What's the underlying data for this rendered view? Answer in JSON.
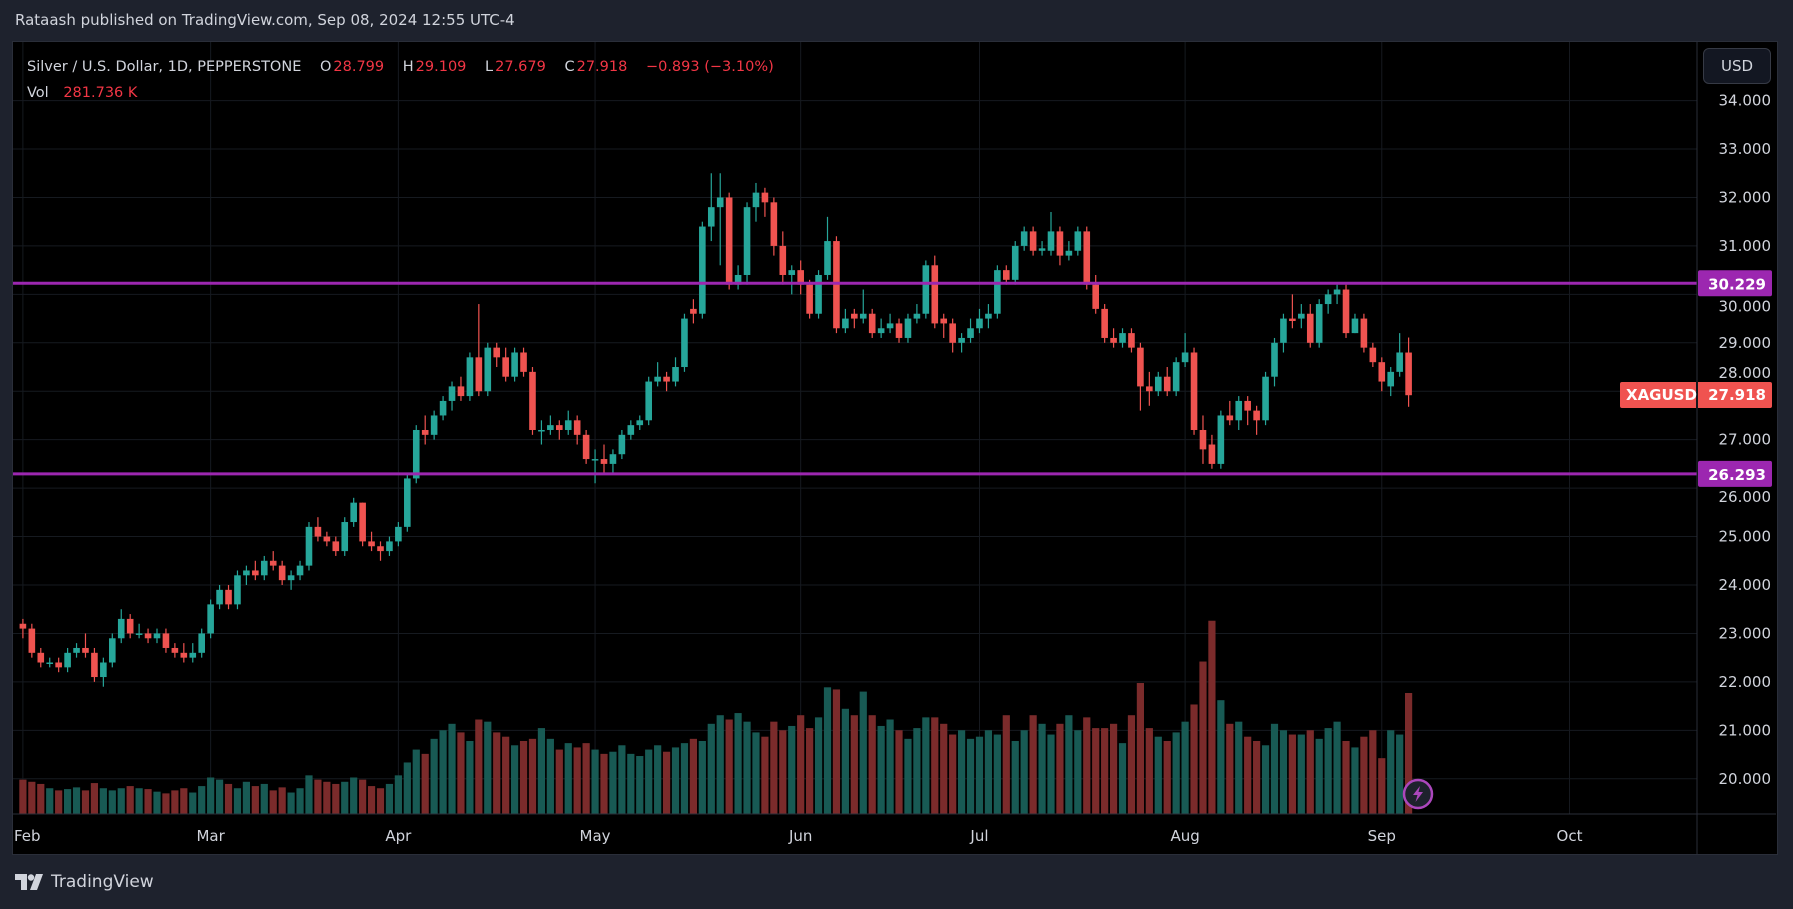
{
  "publisher_line": "Rataash published on TradingView.com, Sep 08, 2024 12:55 UTC-4",
  "brand": "TradingView",
  "legend": {
    "symbol": "Silver / U.S. Dollar, 1D, PEPPERSTONE",
    "o_label": "O",
    "o": "28.799",
    "h_label": "H",
    "h": "29.109",
    "l_label": "L",
    "l": "27.679",
    "c_label": "C",
    "c": "27.918",
    "change": "−0.893 (−3.10%)",
    "vol_label": "Vol",
    "vol": "281.736 K"
  },
  "currency_button": "USD",
  "symbol_badge": "XAGUSD",
  "last_price_badge": "27.918",
  "colors": {
    "up": "#26a69a",
    "down": "#ef5350",
    "vol_up": "#185a54",
    "vol_down": "#7b2b2b",
    "level_line": "#9c27b0",
    "background": "#000000"
  },
  "icons": {
    "replay": "lightning-icon",
    "logo": "tradingview-logo"
  },
  "chart_data": {
    "type": "candlestick",
    "symbol": "XAGUSD",
    "interval": "1D",
    "ylim": [
      19.5,
      34.3
    ],
    "y_ticks": [
      "34.000",
      "33.000",
      "32.000",
      "31.000",
      "30.000",
      "29.000",
      "28.000",
      "27.000",
      "26.000",
      "25.000",
      "24.000",
      "23.000",
      "22.000",
      "21.000",
      "20.000"
    ],
    "x_tick_labels": [
      {
        "label": "Feb",
        "bar": 0
      },
      {
        "label": "Mar",
        "bar": 21
      },
      {
        "label": "Apr",
        "bar": 42
      },
      {
        "label": "May",
        "bar": 64
      },
      {
        "label": "Jun",
        "bar": 87
      },
      {
        "label": "Jul",
        "bar": 107
      },
      {
        "label": "Aug",
        "bar": 130
      },
      {
        "label": "Sep",
        "bar": 152
      },
      {
        "label": "Oct",
        "bar": 173
      }
    ],
    "horizontal_levels": [
      {
        "price": 30.229,
        "label": "30.229"
      },
      {
        "price": 26.293,
        "label": "26.293"
      }
    ],
    "last_price": 27.918,
    "ohlc": [
      [
        23.2,
        23.3,
        22.9,
        23.1
      ],
      [
        23.1,
        23.2,
        22.5,
        22.6
      ],
      [
        22.6,
        22.7,
        22.3,
        22.4
      ],
      [
        22.4,
        22.5,
        22.3,
        22.4
      ],
      [
        22.4,
        22.5,
        22.2,
        22.3
      ],
      [
        22.3,
        22.7,
        22.2,
        22.6
      ],
      [
        22.6,
        22.8,
        22.5,
        22.7
      ],
      [
        22.7,
        23.0,
        22.5,
        22.6
      ],
      [
        22.6,
        22.7,
        22.0,
        22.1
      ],
      [
        22.1,
        22.5,
        21.9,
        22.4
      ],
      [
        22.4,
        23.0,
        22.3,
        22.9
      ],
      [
        22.9,
        23.5,
        22.8,
        23.3
      ],
      [
        23.3,
        23.4,
        22.9,
        23.0
      ],
      [
        23.0,
        23.2,
        22.9,
        23.0
      ],
      [
        23.0,
        23.1,
        22.8,
        22.9
      ],
      [
        22.9,
        23.1,
        22.8,
        23.0
      ],
      [
        23.0,
        23.1,
        22.6,
        22.7
      ],
      [
        22.7,
        22.8,
        22.5,
        22.6
      ],
      [
        22.6,
        22.8,
        22.4,
        22.5
      ],
      [
        22.5,
        22.8,
        22.4,
        22.6
      ],
      [
        22.6,
        23.1,
        22.5,
        23.0
      ],
      [
        23.0,
        23.7,
        22.9,
        23.6
      ],
      [
        23.6,
        24.0,
        23.5,
        23.9
      ],
      [
        23.9,
        24.0,
        23.5,
        23.6
      ],
      [
        23.6,
        24.3,
        23.5,
        24.2
      ],
      [
        24.2,
        24.4,
        24.0,
        24.3
      ],
      [
        24.3,
        24.5,
        24.1,
        24.2
      ],
      [
        24.2,
        24.6,
        24.1,
        24.5
      ],
      [
        24.5,
        24.7,
        24.3,
        24.4
      ],
      [
        24.4,
        24.5,
        24.0,
        24.1
      ],
      [
        24.1,
        24.3,
        23.9,
        24.2
      ],
      [
        24.2,
        24.5,
        24.1,
        24.4
      ],
      [
        24.4,
        25.3,
        24.3,
        25.2
      ],
      [
        25.2,
        25.4,
        24.9,
        25.0
      ],
      [
        25.0,
        25.1,
        24.8,
        24.9
      ],
      [
        24.9,
        25.0,
        24.6,
        24.7
      ],
      [
        24.7,
        25.4,
        24.6,
        25.3
      ],
      [
        25.3,
        25.8,
        25.2,
        25.7
      ],
      [
        25.7,
        25.7,
        24.8,
        24.9
      ],
      [
        24.9,
        25.1,
        24.7,
        24.8
      ],
      [
        24.8,
        24.9,
        24.5,
        24.7
      ],
      [
        24.7,
        25.0,
        24.6,
        24.9
      ],
      [
        24.9,
        25.3,
        24.8,
        25.2
      ],
      [
        25.2,
        26.3,
        25.1,
        26.2
      ],
      [
        26.2,
        27.3,
        26.1,
        27.2
      ],
      [
        27.2,
        27.5,
        26.9,
        27.1
      ],
      [
        27.1,
        27.6,
        27.0,
        27.5
      ],
      [
        27.5,
        27.9,
        27.4,
        27.8
      ],
      [
        27.8,
        28.2,
        27.6,
        28.1
      ],
      [
        28.1,
        28.3,
        27.8,
        27.9
      ],
      [
        27.9,
        28.8,
        27.8,
        28.7
      ],
      [
        28.7,
        29.8,
        27.9,
        28.0
      ],
      [
        28.0,
        29.0,
        27.9,
        28.9
      ],
      [
        28.9,
        29.0,
        28.5,
        28.7
      ],
      [
        28.7,
        28.9,
        28.2,
        28.3
      ],
      [
        28.3,
        28.9,
        28.2,
        28.8
      ],
      [
        28.8,
        28.9,
        28.3,
        28.4
      ],
      [
        28.4,
        28.5,
        27.1,
        27.2
      ],
      [
        27.2,
        27.4,
        26.9,
        27.2
      ],
      [
        27.2,
        27.5,
        27.1,
        27.3
      ],
      [
        27.3,
        27.4,
        27.0,
        27.2
      ],
      [
        27.2,
        27.6,
        27.1,
        27.4
      ],
      [
        27.4,
        27.5,
        26.9,
        27.1
      ],
      [
        27.1,
        27.2,
        26.5,
        26.6
      ],
      [
        26.6,
        26.8,
        26.1,
        26.6
      ],
      [
        26.6,
        26.9,
        26.3,
        26.5
      ],
      [
        26.5,
        26.8,
        26.3,
        26.7
      ],
      [
        26.7,
        27.2,
        26.6,
        27.1
      ],
      [
        27.1,
        27.4,
        27.0,
        27.3
      ],
      [
        27.3,
        27.5,
        27.2,
        27.4
      ],
      [
        27.4,
        28.3,
        27.3,
        28.2
      ],
      [
        28.2,
        28.6,
        28.1,
        28.3
      ],
      [
        28.3,
        28.4,
        28.0,
        28.2
      ],
      [
        28.2,
        28.7,
        28.1,
        28.5
      ],
      [
        28.5,
        29.6,
        28.4,
        29.5
      ],
      [
        29.7,
        29.9,
        29.4,
        29.6
      ],
      [
        29.6,
        31.5,
        29.5,
        31.4
      ],
      [
        31.4,
        32.5,
        31.1,
        31.8
      ],
      [
        31.8,
        32.5,
        30.6,
        32.0
      ],
      [
        32.0,
        32.1,
        30.1,
        30.2
      ],
      [
        30.2,
        30.6,
        30.1,
        30.4
      ],
      [
        30.4,
        31.9,
        30.2,
        31.8
      ],
      [
        31.8,
        32.3,
        31.5,
        32.1
      ],
      [
        32.1,
        32.2,
        31.6,
        31.9
      ],
      [
        31.9,
        32.0,
        30.8,
        31.0
      ],
      [
        31.0,
        31.3,
        30.2,
        30.4
      ],
      [
        30.4,
        30.6,
        30.0,
        30.5
      ],
      [
        30.5,
        30.7,
        30.0,
        30.2
      ],
      [
        30.2,
        30.3,
        29.5,
        29.6
      ],
      [
        29.6,
        30.5,
        29.5,
        30.4
      ],
      [
        30.4,
        31.6,
        30.3,
        31.1
      ],
      [
        31.1,
        31.2,
        29.2,
        29.3
      ],
      [
        29.3,
        29.7,
        29.2,
        29.5
      ],
      [
        29.6,
        29.7,
        29.3,
        29.5
      ],
      [
        29.5,
        30.1,
        29.4,
        29.6
      ],
      [
        29.6,
        29.7,
        29.1,
        29.2
      ],
      [
        29.2,
        29.5,
        29.1,
        29.3
      ],
      [
        29.3,
        29.6,
        29.2,
        29.4
      ],
      [
        29.4,
        29.5,
        29.0,
        29.1
      ],
      [
        29.1,
        29.6,
        29.0,
        29.5
      ],
      [
        29.5,
        29.8,
        29.4,
        29.6
      ],
      [
        29.6,
        30.7,
        29.5,
        30.6
      ],
      [
        30.6,
        30.8,
        29.3,
        29.4
      ],
      [
        29.5,
        29.6,
        29.1,
        29.4
      ],
      [
        29.4,
        29.5,
        28.8,
        29.0
      ],
      [
        29.0,
        29.2,
        28.8,
        29.1
      ],
      [
        29.1,
        29.5,
        29.0,
        29.3
      ],
      [
        29.3,
        29.7,
        29.2,
        29.5
      ],
      [
        29.5,
        29.8,
        29.3,
        29.6
      ],
      [
        29.6,
        30.6,
        29.5,
        30.5
      ],
      [
        30.5,
        30.6,
        30.2,
        30.3
      ],
      [
        30.3,
        31.1,
        30.2,
        31.0
      ],
      [
        31.0,
        31.4,
        30.9,
        31.3
      ],
      [
        31.3,
        31.4,
        30.8,
        30.9
      ],
      [
        30.9,
        31.1,
        30.8,
        30.95
      ],
      [
        30.9,
        31.7,
        30.8,
        31.3
      ],
      [
        31.3,
        31.4,
        30.6,
        30.8
      ],
      [
        30.8,
        31.1,
        30.7,
        30.9
      ],
      [
        30.9,
        31.4,
        30.8,
        31.3
      ],
      [
        31.3,
        31.4,
        30.1,
        30.2
      ],
      [
        30.2,
        30.4,
        29.6,
        29.7
      ],
      [
        29.7,
        29.8,
        29.0,
        29.1
      ],
      [
        29.1,
        29.3,
        28.9,
        29.0
      ],
      [
        29.0,
        29.3,
        28.9,
        29.2
      ],
      [
        29.2,
        29.3,
        28.8,
        28.9
      ],
      [
        28.9,
        29.0,
        27.6,
        28.1
      ],
      [
        28.1,
        28.4,
        27.7,
        28.0
      ],
      [
        28.0,
        28.4,
        27.9,
        28.3
      ],
      [
        28.3,
        28.5,
        27.9,
        28.0
      ],
      [
        28.0,
        28.7,
        27.9,
        28.6
      ],
      [
        28.6,
        29.2,
        28.5,
        28.8
      ],
      [
        28.8,
        28.9,
        27.1,
        27.2
      ],
      [
        27.2,
        27.5,
        26.5,
        26.8
      ],
      [
        26.9,
        27.1,
        26.4,
        26.5
      ],
      [
        26.5,
        27.6,
        26.4,
        27.5
      ],
      [
        27.5,
        27.8,
        27.3,
        27.4
      ],
      [
        27.4,
        27.9,
        27.2,
        27.8
      ],
      [
        27.8,
        27.9,
        27.3,
        27.6
      ],
      [
        27.6,
        27.7,
        27.1,
        27.4
      ],
      [
        27.4,
        28.4,
        27.3,
        28.3
      ],
      [
        28.3,
        29.1,
        28.1,
        29.0
      ],
      [
        29.0,
        29.6,
        28.8,
        29.5
      ],
      [
        29.5,
        30.0,
        29.3,
        29.45
      ],
      [
        29.5,
        29.8,
        29.3,
        29.6
      ],
      [
        29.6,
        29.8,
        28.9,
        29.0
      ],
      [
        29.0,
        29.9,
        28.9,
        29.8
      ],
      [
        29.8,
        30.1,
        29.6,
        30.0
      ],
      [
        30.0,
        30.2,
        29.8,
        30.1
      ],
      [
        30.1,
        30.2,
        29.1,
        29.2
      ],
      [
        29.2,
        29.6,
        29.2,
        29.5
      ],
      [
        29.5,
        29.6,
        28.8,
        28.9
      ],
      [
        28.9,
        29.0,
        28.5,
        28.6
      ],
      [
        28.6,
        28.7,
        28.0,
        28.2
      ],
      [
        28.1,
        28.5,
        27.9,
        28.4
      ],
      [
        28.4,
        29.2,
        28.3,
        28.8
      ],
      [
        28.799,
        29.109,
        27.679,
        27.918
      ]
    ],
    "volume_k": [
      80,
      75,
      70,
      60,
      55,
      58,
      62,
      55,
      72,
      60,
      55,
      60,
      65,
      60,
      58,
      52,
      48,
      55,
      60,
      50,
      65,
      85,
      80,
      70,
      60,
      75,
      65,
      70,
      55,
      62,
      50,
      60,
      90,
      80,
      75,
      70,
      75,
      85,
      80,
      65,
      60,
      70,
      90,
      120,
      150,
      140,
      175,
      195,
      210,
      190,
      170,
      220,
      215,
      190,
      180,
      160,
      170,
      175,
      200,
      175,
      150,
      165,
      155,
      165,
      150,
      140,
      145,
      160,
      140,
      135,
      150,
      160,
      145,
      155,
      165,
      175,
      170,
      210,
      230,
      220,
      235,
      215,
      190,
      180,
      215,
      195,
      205,
      230,
      200,
      225,
      295,
      290,
      245,
      230,
      285,
      230,
      205,
      220,
      195,
      175,
      200,
      225,
      225,
      210,
      185,
      195,
      175,
      180,
      195,
      185,
      230,
      170,
      195,
      230,
      210,
      185,
      210,
      230,
      195,
      225,
      200,
      200,
      210,
      165,
      230,
      305,
      200,
      180,
      170,
      190,
      215,
      255,
      355,
      450,
      265,
      210,
      215,
      180,
      170,
      160,
      210,
      195,
      185,
      185,
      195,
      175,
      200,
      215,
      170,
      155,
      180,
      195,
      130,
      195,
      185,
      281.736
    ]
  }
}
